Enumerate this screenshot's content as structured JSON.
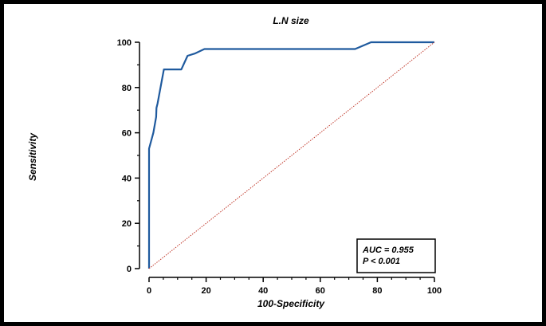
{
  "chart_data": {
    "type": "line",
    "title": "L.N size",
    "xlabel": "100-Specificity",
    "ylabel": "Sensitivity",
    "xlim": [
      0,
      100
    ],
    "ylim": [
      0,
      100
    ],
    "x_ticks": [
      "0",
      "20",
      "40",
      "60",
      "80",
      "100"
    ],
    "y_ticks": [
      "0",
      "20",
      "40",
      "60",
      "80",
      "100"
    ],
    "grid": false,
    "series": [
      {
        "color": "#1f5a9e",
        "points": [
          [
            0,
            0
          ],
          [
            0,
            53
          ],
          [
            1.5,
            60
          ],
          [
            2.5,
            67
          ],
          [
            2.6,
            71
          ],
          [
            3,
            73
          ],
          [
            5.2,
            88
          ],
          [
            8,
            88
          ],
          [
            11.3,
            88
          ],
          [
            13.5,
            94
          ],
          [
            16,
            95
          ],
          [
            19.4,
            97
          ],
          [
            72.2,
            97
          ],
          [
            77.8,
            100
          ],
          [
            100,
            100
          ]
        ]
      },
      {
        "color": "#c0392b",
        "style": "dotted",
        "points": [
          [
            0,
            0
          ],
          [
            100,
            100
          ]
        ]
      }
    ],
    "annotation": {
      "line1": "AUC = 0.955",
      "line2": "P < 0.001"
    }
  }
}
